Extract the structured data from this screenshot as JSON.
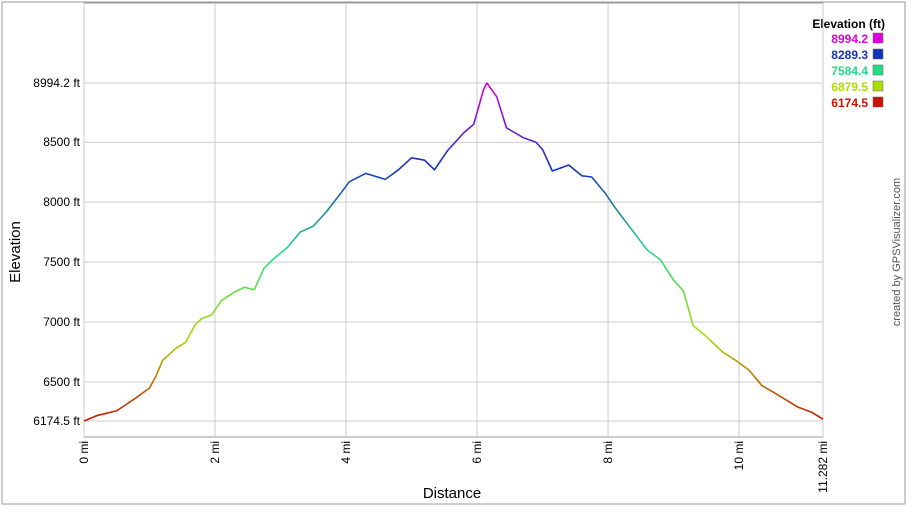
{
  "chart_data": {
    "type": "line",
    "x_label": "Distance",
    "y_label": "Elevation",
    "credit": "created by GPSVisualizer.com",
    "legend_title": "Elevation (ft)",
    "legend": [
      {
        "value": 8994.2,
        "color": "#dd00dd"
      },
      {
        "value": 8289.3,
        "color": "#1133bb"
      },
      {
        "value": 7584.4,
        "color": "#22dd88"
      },
      {
        "value": 6879.5,
        "color": "#aadd00"
      },
      {
        "value": 6174.5,
        "color": "#cc1100"
      }
    ],
    "xlim": [
      0,
      11.282
    ],
    "ylim": [
      6174.5,
      8994.2
    ],
    "xticks": [
      {
        "value": 0,
        "label": "0 mi"
      },
      {
        "value": 2,
        "label": "2 mi"
      },
      {
        "value": 4,
        "label": "4 mi"
      },
      {
        "value": 6,
        "label": "6 mi"
      },
      {
        "value": 8,
        "label": "8 mi"
      },
      {
        "value": 10,
        "label": "10 mi"
      },
      {
        "value": 11.282,
        "label": "11.282 mi"
      }
    ],
    "yticks": [
      {
        "value": 6174.5,
        "label": "6174.5 ft"
      },
      {
        "value": 6500,
        "label": "6500 ft"
      },
      {
        "value": 7000,
        "label": "7000 ft"
      },
      {
        "value": 7500,
        "label": "7500 ft"
      },
      {
        "value": 8000,
        "label": "8000 ft"
      },
      {
        "value": 8500,
        "label": "8500 ft"
      },
      {
        "value": 8994.2,
        "label": "8994.2 ft"
      }
    ],
    "grid": true,
    "x": [
      0,
      0.2,
      0.5,
      0.8,
      1.0,
      1.1,
      1.2,
      1.4,
      1.55,
      1.7,
      1.8,
      1.95,
      2.1,
      2.3,
      2.45,
      2.6,
      2.75,
      2.9,
      3.1,
      3.3,
      3.5,
      3.7,
      3.9,
      4.05,
      4.3,
      4.6,
      4.8,
      5.0,
      5.2,
      5.35,
      5.55,
      5.8,
      5.95,
      6.1,
      6.15,
      6.3,
      6.45,
      6.7,
      6.9,
      7.0,
      7.15,
      7.4,
      7.6,
      7.75,
      7.95,
      8.1,
      8.35,
      8.6,
      8.8,
      9.0,
      9.15,
      9.3,
      9.5,
      9.75,
      9.95,
      10.15,
      10.35,
      10.6,
      10.9,
      11.1,
      11.282
    ],
    "series": [
      {
        "name": "Elevation",
        "values": [
          6174.5,
          6220,
          6260,
          6370,
          6450,
          6550,
          6680,
          6780,
          6830,
          6980,
          7030,
          7060,
          7180,
          7250,
          7290,
          7270,
          7450,
          7530,
          7620,
          7750,
          7800,
          7920,
          8060,
          8170,
          8240,
          8190,
          8270,
          8370,
          8350,
          8270,
          8430,
          8580,
          8650,
          8940,
          8994.2,
          8880,
          8620,
          8540,
          8500,
          8440,
          8260,
          8310,
          8220,
          8210,
          8080,
          7960,
          7780,
          7600,
          7520,
          7350,
          7260,
          6970,
          6880,
          6750,
          6680,
          6600,
          6470,
          6390,
          6290,
          6250,
          6190
        ]
      }
    ]
  }
}
